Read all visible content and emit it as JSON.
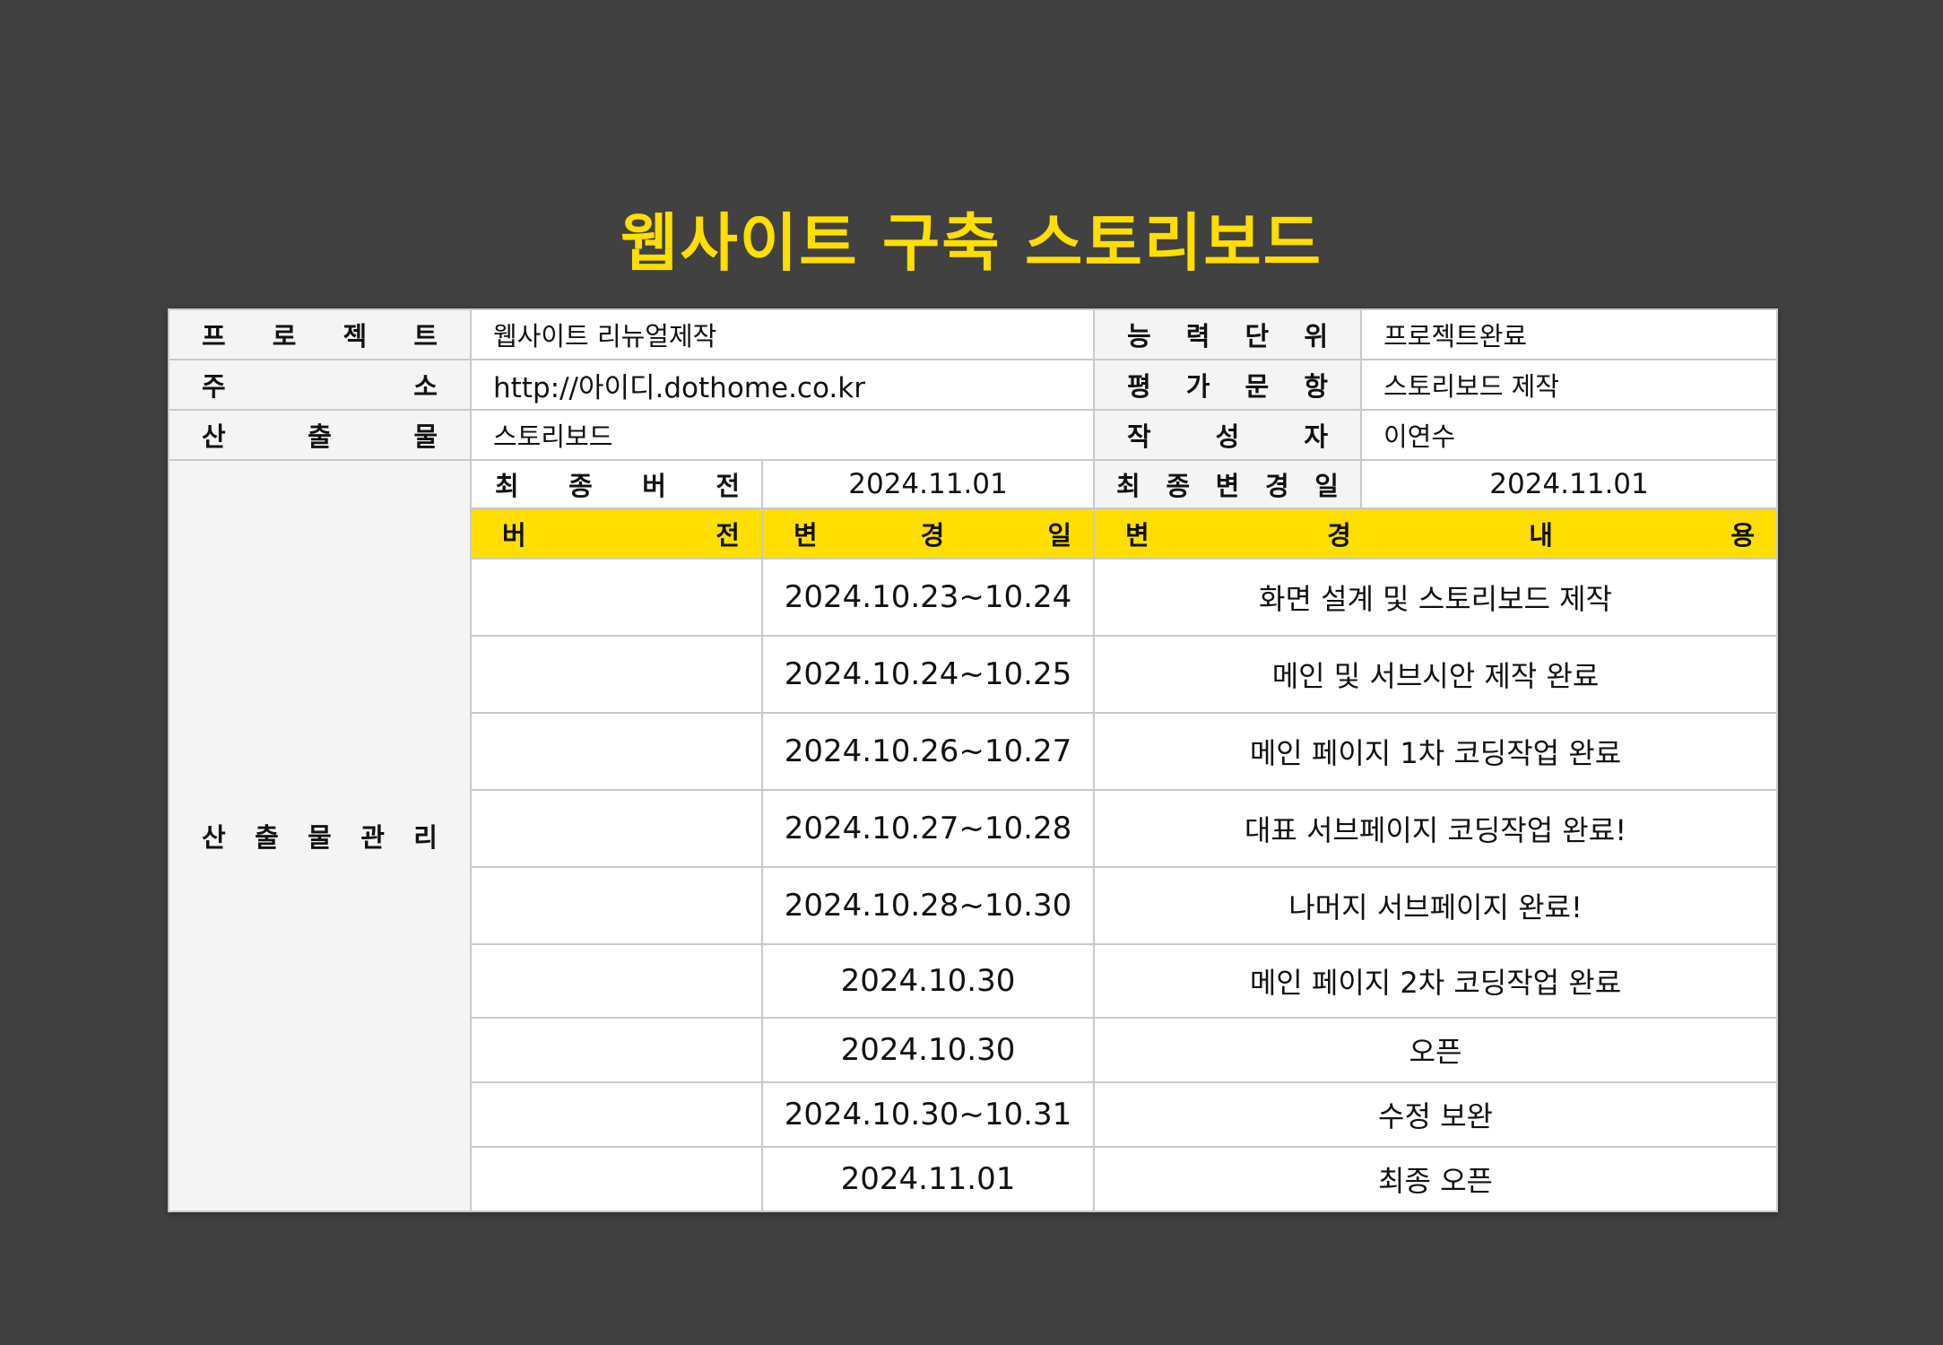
{
  "title": "웹사이트 구축 스토리보드",
  "colors": {
    "background": "#414141",
    "accent": "#FFDE00",
    "label_bg": "#f4f4f4"
  },
  "info": {
    "project_label": "프 로 젝 트",
    "project_value": "웹사이트 리뉴얼제작",
    "ability_label": "능 력 단 위",
    "ability_value": "프로젝트완료",
    "address_label": "주 소",
    "address_value": "http://아이디.dothome.co.kr",
    "eval_label": "평 가 문 항",
    "eval_value": "스토리보드 제작",
    "output_label": "산 출 물",
    "output_value": "스토리보드",
    "author_label": "작 성 자",
    "author_value": "이연수",
    "manage_label": "산 출 물 관 리",
    "final_version_label": "최 종 버 전",
    "final_version_value": "2024.11.01",
    "final_change_label": "최 종 변 경 일",
    "final_change_value": "2024.11.01"
  },
  "history_headers": {
    "version": "버 전",
    "date": "변 경 일",
    "content": "변 경 내 용"
  },
  "history": [
    {
      "version": "",
      "date": "2024.10.23~10.24",
      "content": "화면 설계 및 스토리보드 제작"
    },
    {
      "version": "",
      "date": "2024.10.24~10.25",
      "content": "메인 및 서브시안 제작 완료"
    },
    {
      "version": "",
      "date": "2024.10.26~10.27",
      "content": "메인 페이지 1차 코딩작업 완료"
    },
    {
      "version": "",
      "date": "2024.10.27~10.28",
      "content": "대표 서브페이지 코딩작업 완료!"
    },
    {
      "version": "",
      "date": "2024.10.28~10.30",
      "content": "나머지 서브페이지 완료!"
    },
    {
      "version": "",
      "date": "2024.10.30",
      "content": "메인 페이지 2차 코딩작업 완료"
    },
    {
      "version": "",
      "date": "2024.10.30",
      "content": "오픈"
    },
    {
      "version": "",
      "date": "2024.10.30~10.31",
      "content": "수정 보완"
    },
    {
      "version": "",
      "date": "2024.11.01",
      "content": "최종 오픈"
    }
  ]
}
